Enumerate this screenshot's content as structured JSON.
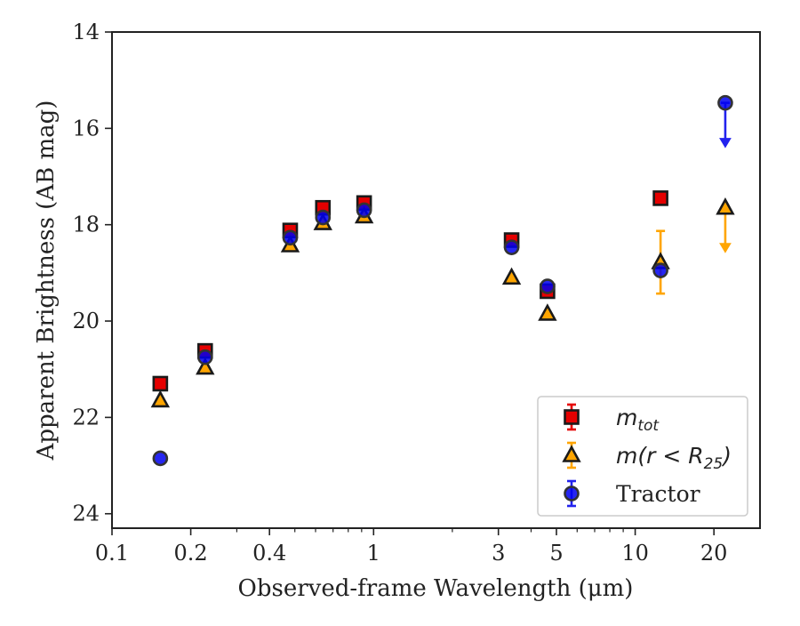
{
  "chart_data": {
    "type": "scatter",
    "xscale": "log",
    "yinverted": true,
    "xlim": [
      0.1,
      30
    ],
    "ylim": [
      24.3,
      14
    ],
    "xlabel": "Observed-frame Wavelength (μm)",
    "ylabel": "Apparent Brightness (AB mag)",
    "xticks": [
      {
        "value": 0.1,
        "label": "0.1"
      },
      {
        "value": 0.2,
        "label": "0.2"
      },
      {
        "value": 0.4,
        "label": "0.4"
      },
      {
        "value": 1,
        "label": "1"
      },
      {
        "value": 3,
        "label": "3"
      },
      {
        "value": 5,
        "label": "5"
      },
      {
        "value": 10,
        "label": "10"
      },
      {
        "value": 20,
        "label": "20"
      }
    ],
    "yticks": [
      {
        "value": 14,
        "label": "14"
      },
      {
        "value": 16,
        "label": "16"
      },
      {
        "value": 18,
        "label": "18"
      },
      {
        "value": 20,
        "label": "20"
      },
      {
        "value": 22,
        "label": "22"
      },
      {
        "value": 24,
        "label": "24"
      }
    ],
    "grid": false,
    "legend_position": "lower-right",
    "series": [
      {
        "name": "m_tot",
        "marker": "square",
        "color": "#e50000",
        "edge": "#1a1a1a",
        "errcolor": "#e50000",
        "points": [
          {
            "x": 0.153,
            "y": 21.3
          },
          {
            "x": 0.227,
            "y": 20.62
          },
          {
            "x": 0.48,
            "y": 18.12
          },
          {
            "x": 0.64,
            "y": 17.65
          },
          {
            "x": 0.92,
            "y": 17.55
          },
          {
            "x": 3.37,
            "y": 18.32
          },
          {
            "x": 4.62,
            "y": 19.38
          },
          {
            "x": 12.5,
            "y": 17.45
          }
        ]
      },
      {
        "name": "m(r < R25)",
        "marker": "triangle",
        "color": "#ffa500",
        "edge": "#1a1a1a",
        "errcolor": "#ffa500",
        "points": [
          {
            "x": 0.153,
            "y": 21.65
          },
          {
            "x": 0.227,
            "y": 20.97
          },
          {
            "x": 0.48,
            "y": 18.43
          },
          {
            "x": 0.64,
            "y": 17.97
          },
          {
            "x": 0.92,
            "y": 17.83
          },
          {
            "x": 3.37,
            "y": 19.1
          },
          {
            "x": 4.62,
            "y": 19.85
          },
          {
            "x": 12.5,
            "y": 18.78,
            "yerr": 0.65
          },
          {
            "x": 22.1,
            "y": 17.65,
            "upper_limit": true
          }
        ]
      },
      {
        "name": "Tractor",
        "marker": "circle",
        "color": "#0000ee",
        "edge": "#333333",
        "errcolor": "#2222ee",
        "points": [
          {
            "x": 0.153,
            "y": 22.85
          },
          {
            "x": 0.227,
            "y": 20.75
          },
          {
            "x": 0.48,
            "y": 18.27
          },
          {
            "x": 0.64,
            "y": 17.85
          },
          {
            "x": 0.92,
            "y": 17.7
          },
          {
            "x": 3.37,
            "y": 18.47
          },
          {
            "x": 4.62,
            "y": 19.28
          },
          {
            "x": 12.5,
            "y": 18.95
          },
          {
            "x": 22.1,
            "y": 15.47,
            "upper_limit": true
          }
        ]
      }
    ],
    "legend": [
      {
        "label": "m",
        "subscript": "tot",
        "tail": "",
        "marker": "square",
        "color": "#e50000",
        "errcolor": "#e50000"
      },
      {
        "label": "m(r < R",
        "subscript": "25",
        "tail": ")",
        "marker": "triangle",
        "color": "#ffa500",
        "errcolor": "#ffa500"
      },
      {
        "label": "Tractor",
        "subscript": "",
        "tail": "",
        "marker": "circle",
        "color": "#0000ee",
        "errcolor": "#2222ee"
      }
    ]
  }
}
